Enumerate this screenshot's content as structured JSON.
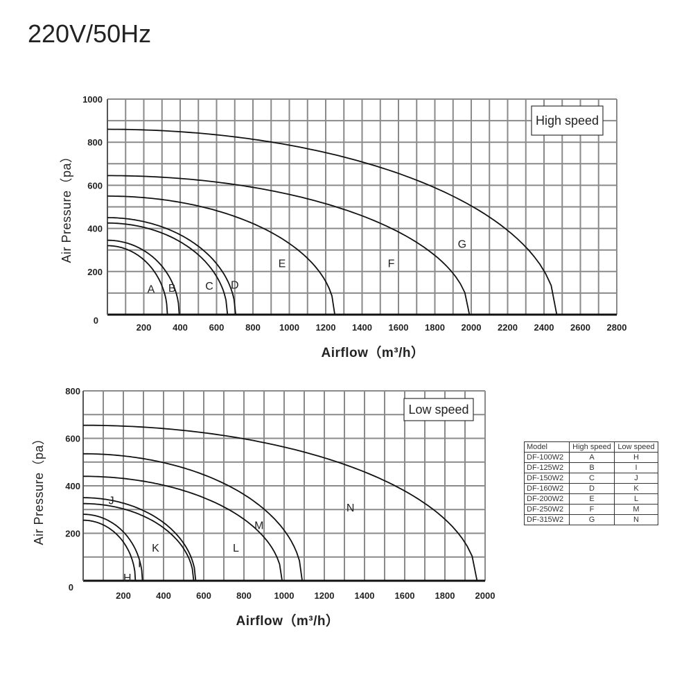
{
  "page_title": "220V/50Hz",
  "chart_data": [
    {
      "type": "line",
      "box_label": "High speed",
      "xlabel": "Airflow（m³/h）",
      "ylabel": "Air Pressure（pa）",
      "xlim": [
        0,
        2800
      ],
      "ylim": [
        0,
        1000
      ],
      "x_ticks": [
        200,
        400,
        600,
        800,
        1000,
        1200,
        1400,
        1600,
        1800,
        2000,
        2200,
        2400,
        2600,
        2800
      ],
      "y_ticks": [
        0,
        200,
        400,
        600,
        800,
        1000
      ],
      "series": [
        {
          "name": "A",
          "p0": 320,
          "q0": 330,
          "label_at": [
            240,
            120
          ]
        },
        {
          "name": "B",
          "p0": 345,
          "q0": 395,
          "label_at": [
            355,
            125
          ]
        },
        {
          "name": "C",
          "p0": 425,
          "q0": 660,
          "label_at": [
            560,
            135
          ]
        },
        {
          "name": "D",
          "p0": 450,
          "q0": 705,
          "label_at": [
            700,
            140
          ]
        },
        {
          "name": "E",
          "p0": 550,
          "q0": 1250,
          "label_at": [
            960,
            240
          ]
        },
        {
          "name": "F",
          "p0": 645,
          "q0": 1990,
          "label_at": [
            1560,
            240
          ]
        },
        {
          "name": "G",
          "p0": 860,
          "q0": 2470,
          "label_at": [
            1950,
            330
          ]
        }
      ]
    },
    {
      "type": "line",
      "box_label": "Low speed",
      "xlabel": "Airflow（m³/h）",
      "ylabel": "Air Pressure（pa）",
      "xlim": [
        0,
        2000
      ],
      "ylim": [
        0,
        800
      ],
      "x_ticks": [
        200,
        400,
        600,
        800,
        1000,
        1200,
        1400,
        1600,
        1800,
        2000
      ],
      "y_ticks": [
        0,
        200,
        400,
        600,
        800
      ],
      "series": [
        {
          "name": "H",
          "p0": 255,
          "q0": 260,
          "label_at": [
            220,
            15
          ]
        },
        {
          "name": "I",
          "p0": 280,
          "q0": 295,
          "label_at": [
            280,
            75
          ]
        },
        {
          "name": "J",
          "p0": 325,
          "q0": 550,
          "label_at": [
            140,
            340
          ]
        },
        {
          "name": "K",
          "p0": 350,
          "q0": 560,
          "label_at": [
            360,
            140
          ]
        },
        {
          "name": "L",
          "p0": 440,
          "q0": 990,
          "label_at": [
            760,
            140
          ]
        },
        {
          "name": "M",
          "p0": 535,
          "q0": 1090,
          "label_at": [
            875,
            235
          ]
        },
        {
          "name": "N",
          "p0": 655,
          "q0": 1960,
          "label_at": [
            1330,
            310
          ]
        }
      ]
    }
  ],
  "model_table": {
    "headers": [
      "Model",
      "High speed",
      "Low speed"
    ],
    "rows": [
      [
        "DF-100W2",
        "A",
        "H"
      ],
      [
        "DF-125W2",
        "B",
        "I"
      ],
      [
        "DF-150W2",
        "C",
        "J"
      ],
      [
        "DF-160W2",
        "D",
        "K"
      ],
      [
        "DF-200W2",
        "E",
        "L"
      ],
      [
        "DF-250W2",
        "F",
        "M"
      ],
      [
        "DF-315W2",
        "G",
        "N"
      ]
    ]
  }
}
